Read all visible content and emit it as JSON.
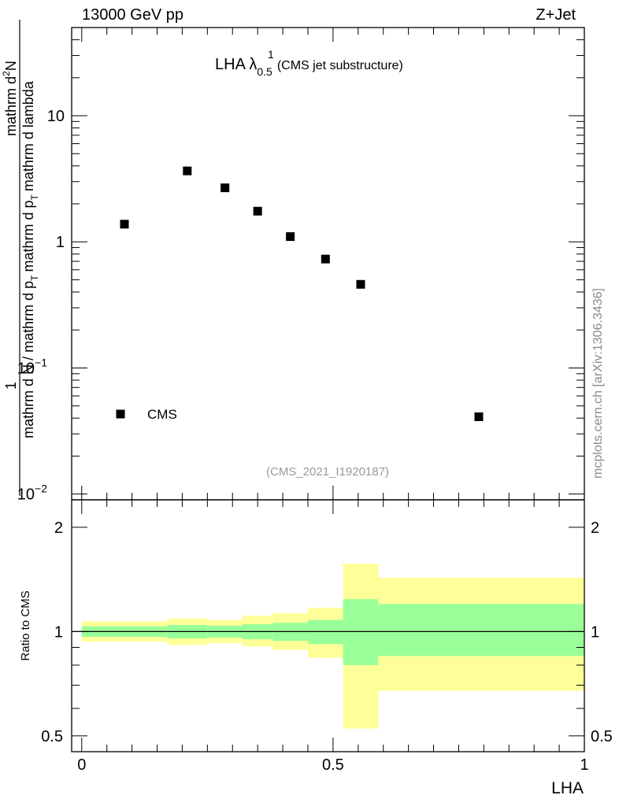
{
  "header": {
    "left": "13000 GeV pp",
    "right": "Z+Jet"
  },
  "plot_title": {
    "main": "LHA λ",
    "sup": "1",
    "sub": "0.5",
    "suffix": "(CMS jet substructure)"
  },
  "analysis_tag": "(CMS_2021_I1920187)",
  "watermark": "mcplots.cern.ch [arXiv:1306.3436]",
  "y_axis_top": {
    "numerator": "1",
    "denominator": "mathrm d N / mathrm d p",
    "denominator_sub": "T",
    "denominator_tail": "mathrm d p",
    "denominator_tail_sub": "T",
    "denominator_end": "mathrm d lambda",
    "numerator_rest": "mathrm d",
    "numerator_sup": "2",
    "numerator_end": "N"
  },
  "y_axis_bottom_label": "Ratio to CMS",
  "x_axis_label": "LHA",
  "chart_data": [
    {
      "type": "scatter",
      "panel": "main",
      "title": "LHA λ^1_0.5 (CMS jet substructure)",
      "yscale": "log",
      "ylim": [
        0.009,
        50
      ],
      "xlim": [
        -0.02,
        1.0
      ],
      "yticks": [
        {
          "value": 10,
          "label": "10"
        },
        {
          "value": 1,
          "label": "1"
        },
        {
          "value": 0.1,
          "label": "10",
          "exp": "−1"
        },
        {
          "value": 0.01,
          "label": "10",
          "exp": "−2"
        }
      ],
      "series": [
        {
          "name": "CMS",
          "marker": "square",
          "color": "#000000",
          "x": [
            0.085,
            0.21,
            0.285,
            0.35,
            0.415,
            0.485,
            0.555,
            0.79
          ],
          "y": [
            1.38,
            3.65,
            2.68,
            1.75,
            1.1,
            0.73,
            0.46,
            0.041
          ]
        }
      ],
      "legend": "bottom-left"
    },
    {
      "type": "area",
      "panel": "ratio",
      "ylabel": "Ratio to CMS",
      "xlabel": "LHA",
      "yscale": "log",
      "ylim": [
        0.45,
        2.4
      ],
      "xlim": [
        -0.02,
        1.0
      ],
      "xticks": [
        {
          "value": 0,
          "label": "0"
        },
        {
          "value": 0.5,
          "label": "0.5"
        },
        {
          "value": 1,
          "label": "1"
        }
      ],
      "yticks": [
        {
          "value": 2,
          "label": "2"
        },
        {
          "value": 1,
          "label": "1"
        },
        {
          "value": 0.5,
          "label": "0.5"
        }
      ],
      "reference_line": 1,
      "bands": {
        "inner_color": "#99ff99",
        "outer_color": "#ffff99",
        "bins": [
          {
            "x0": 0.0,
            "x1": 0.17,
            "inner": [
              0.965,
              1.035
            ],
            "outer": [
              0.935,
              1.07
            ]
          },
          {
            "x0": 0.17,
            "x1": 0.25,
            "inner": [
              0.955,
              1.045
            ],
            "outer": [
              0.915,
              1.09
            ]
          },
          {
            "x0": 0.25,
            "x1": 0.32,
            "inner": [
              0.96,
              1.04
            ],
            "outer": [
              0.925,
              1.08
            ]
          },
          {
            "x0": 0.32,
            "x1": 0.38,
            "inner": [
              0.95,
              1.05
            ],
            "outer": [
              0.905,
              1.11
            ]
          },
          {
            "x0": 0.38,
            "x1": 0.45,
            "inner": [
              0.94,
              1.06
            ],
            "outer": [
              0.885,
              1.13
            ]
          },
          {
            "x0": 0.45,
            "x1": 0.52,
            "inner": [
              0.92,
              1.08
            ],
            "outer": [
              0.84,
              1.17
            ]
          },
          {
            "x0": 0.52,
            "x1": 0.59,
            "inner": [
              0.8,
              1.24
            ],
            "outer": [
              0.525,
              1.57
            ]
          },
          {
            "x0": 0.59,
            "x1": 1.0,
            "inner": [
              0.85,
              1.2
            ],
            "outer": [
              0.675,
              1.43
            ]
          }
        ]
      }
    }
  ]
}
